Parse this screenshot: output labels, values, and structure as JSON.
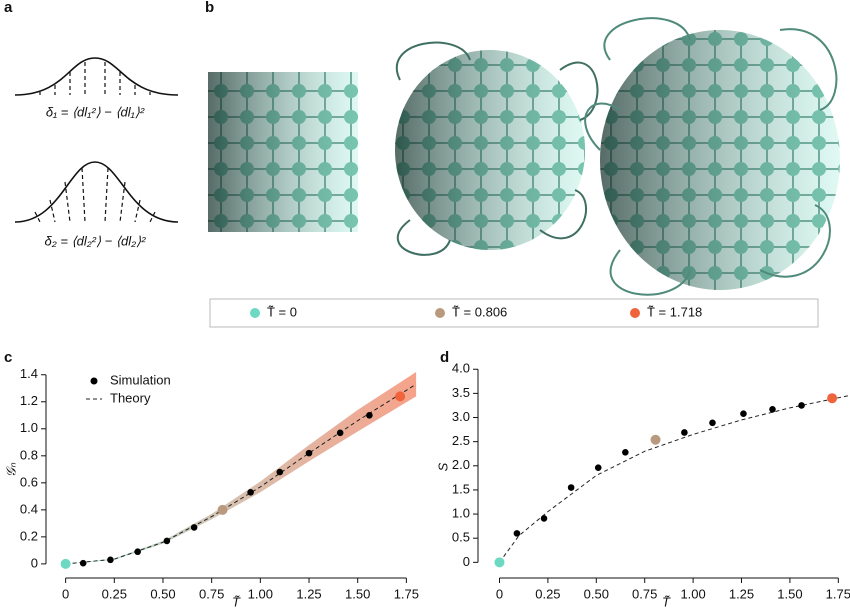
{
  "panel_labels": [
    "a",
    "b",
    "c",
    "d"
  ],
  "formulas": [
    "δ₁ = ⟨dl₁²⟩ − ⟨dl₁⟩²",
    "δ₂ = ⟨dl₂²⟩ − ⟨dl₂⟩²"
  ],
  "legend": [
    {
      "label": "T̃ = 0",
      "color": "#6dd9c3"
    },
    {
      "label": "T̃ = 0.806",
      "color": "#b99a7e"
    },
    {
      "label": "T̃ = 1.718",
      "color": "#f0643c"
    }
  ],
  "chart_data": [
    {
      "type": "scatter",
      "xlabel": "T̃",
      "ylabel": "𝒢ₙ",
      "xlim": [
        -0.07,
        1.82
      ],
      "ylim": [
        -0.06,
        1.45
      ],
      "xticks": [
        0,
        0.25,
        {
          "value": 0.5,
          "label": "0.50"
        },
        0.75,
        {
          "value": 1,
          "label": "1.00"
        },
        1.25,
        {
          "value": 1.5,
          "label": "1.50"
        },
        1.75
      ],
      "yticks": [
        0,
        0.2,
        0.4,
        0.6,
        0.8,
        {
          "value": 1,
          "label": "1.0"
        },
        1.2,
        1.4
      ],
      "series": [
        {
          "name": "Simulation",
          "x": [
            0,
            0.09,
            0.23,
            0.37,
            0.52,
            0.66,
            0.806,
            0.95,
            1.1,
            1.25,
            1.41,
            1.56,
            1.718
          ],
          "values": [
            0,
            0.005,
            0.03,
            0.09,
            0.17,
            0.27,
            0.4,
            0.53,
            0.68,
            0.82,
            0.97,
            1.1,
            1.24
          ],
          "colors": [
            "#6dd9c3",
            "#000000",
            "#000000",
            "#000000",
            "#000000",
            "#000000",
            "#b99a7e",
            "#000000",
            "#000000",
            "#000000",
            "#000000",
            "#000000",
            "#f0643c"
          ]
        },
        {
          "name": "Theory",
          "x": [
            0,
            0.25,
            0.5,
            0.75,
            1,
            1.25,
            1.5,
            1.8
          ],
          "values": [
            0,
            0.035,
            0.16,
            0.35,
            0.57,
            0.82,
            1.06,
            1.33
          ],
          "lower": [
            0,
            0.03,
            0.15,
            0.33,
            0.53,
            0.76,
            0.98,
            1.24
          ],
          "upper": [
            0,
            0.04,
            0.17,
            0.37,
            0.61,
            0.88,
            1.14,
            1.42
          ]
        }
      ]
    },
    {
      "type": "scatter",
      "xlabel": "T̃",
      "ylabel": "S",
      "xlim": [
        -0.08,
        1.8
      ],
      "ylim": [
        -0.2,
        4.15
      ],
      "xticks": [
        0,
        0.25,
        {
          "value": 0.5,
          "label": "0.50"
        },
        0.75,
        {
          "value": 1,
          "label": "1.00"
        },
        1.25,
        {
          "value": 1.5,
          "label": "1.50"
        },
        1.75
      ],
      "yticks": [
        0,
        0.5,
        {
          "value": 1,
          "label": "1.0"
        },
        1.5,
        {
          "value": 2,
          "label": "2.0"
        },
        2.5,
        {
          "value": 3,
          "label": "3.0"
        },
        3.5,
        {
          "value": 4,
          "label": "4.0"
        }
      ],
      "series": [
        {
          "x": [
            0,
            0.09,
            0.23,
            0.37,
            0.51,
            0.65,
            0.806,
            0.955,
            1.1,
            1.26,
            1.41,
            1.56,
            1.718
          ],
          "values": [
            0,
            0.6,
            0.91,
            1.55,
            1.96,
            2.28,
            2.54,
            2.69,
            2.89,
            3.08,
            3.17,
            3.25,
            3.4
          ],
          "colors": [
            "#6dd9c3",
            "#000000",
            "#000000",
            "#000000",
            "#000000",
            "#000000",
            "#b99a7e",
            "#000000",
            "#000000",
            "#000000",
            "#000000",
            "#000000",
            "#f0643c"
          ]
        },
        {
          "x": [
            0,
            0.1,
            0.25,
            0.5,
            0.75,
            1,
            1.25,
            1.5,
            1.8
          ],
          "values": [
            0,
            0.55,
            1.05,
            1.8,
            2.3,
            2.65,
            2.95,
            3.2,
            3.45
          ]
        }
      ]
    }
  ]
}
